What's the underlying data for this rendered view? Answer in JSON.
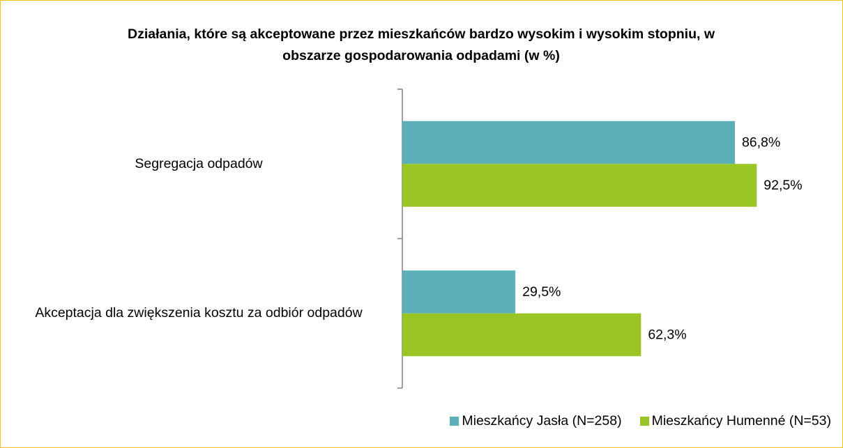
{
  "chart_data": {
    "type": "bar",
    "orientation": "horizontal",
    "title": "Działania, które są akceptowane przez mieszkańców bardzo wysokim i wysokim stopniu, w obszarze gospodarowania odpadami (w %)",
    "categories": [
      "Segregacja odpadów",
      "Akceptacja dla zwiększenia kosztu za odbiór odpadów"
    ],
    "series": [
      {
        "name": "Mieszkańcy Jasła (N=258)",
        "color": "#5aafb8",
        "values": [
          86.8,
          29.5
        ],
        "value_labels": [
          "86,8%",
          "29,5%"
        ]
      },
      {
        "name": "Mieszkańcy Humenné (N=53)",
        "color": "#9ac625",
        "values": [
          92.5,
          62.3
        ],
        "value_labels": [
          "92,5%",
          "62,3%"
        ]
      }
    ],
    "legend": "bottom"
  }
}
